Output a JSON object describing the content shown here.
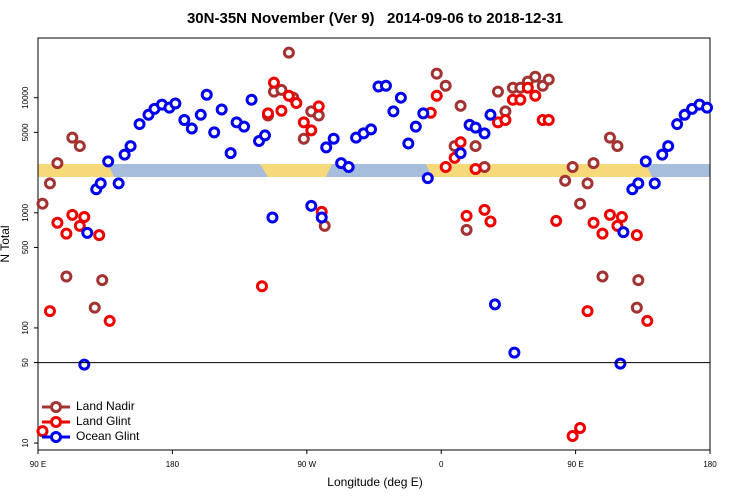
{
  "chart_data": {
    "type": "scatter",
    "title": "30N-35N November (Ver 9)   2014-09-06 to 2018-12-31",
    "x_label": "Longitude (deg E)",
    "y_label": "N Total",
    "xlim": [
      90,
      540
    ],
    "xticks": [
      {
        "value": 90,
        "label": "90 E"
      },
      180,
      {
        "value": 270,
        "label": "90 W"
      },
      {
        "value": 360,
        "label": "0"
      },
      {
        "value": 450,
        "label": "90 E"
      },
      {
        "value": 540,
        "label": "180"
      }
    ],
    "ylim": [
      8.7,
      33000
    ],
    "ylog": true,
    "yticks": [
      10,
      50,
      100,
      500,
      1000,
      5000,
      10000
    ],
    "hline": 50,
    "legend": "lower left",
    "series": [
      {
        "name": "Land Nadir",
        "color": "#a33232",
        "x": [
          93,
          98,
          103,
          109,
          113,
          118,
          128,
          133,
          244,
          248,
          253,
          258,
          261,
          268,
          273,
          278,
          282,
          357,
          363,
          373,
          369,
          377,
          383,
          389,
          398,
          403,
          408,
          413,
          418,
          423,
          428,
          432,
          443,
          448,
          453,
          458,
          462,
          468,
          473,
          478,
          491,
          492
        ],
        "values": [
          1200,
          1800,
          2700,
          280,
          4500,
          3800,
          150,
          260,
          7000,
          11300,
          11700,
          24600,
          10000,
          4400,
          7600,
          7000,
          770,
          16200,
          12700,
          8500,
          3800,
          710,
          3800,
          2500,
          11300,
          7600,
          12200,
          12200,
          13800,
          15200,
          12700,
          14400,
          1900,
          2500,
          1200,
          1800,
          2700,
          280,
          4500,
          3800,
          150,
          260
        ]
      },
      {
        "name": "Land Glint",
        "color": "#ee0000",
        "x": [
          93,
          98,
          103,
          109,
          113,
          118,
          121,
          131,
          138,
          240,
          244,
          248,
          253,
          258,
          263,
          268,
          273,
          278,
          280,
          353,
          357,
          363,
          369,
          373,
          377,
          383,
          389,
          393,
          398,
          403,
          408,
          413,
          418,
          423,
          428,
          432,
          437,
          448,
          453,
          458,
          462,
          468,
          473,
          478,
          481,
          491,
          498
        ],
        "values": [
          12.7,
          140,
          820,
          660,
          960,
          770,
          920,
          640,
          115,
          230,
          7300,
          13500,
          7700,
          10400,
          9000,
          6100,
          5200,
          8400,
          1020,
          7400,
          10400,
          2500,
          3000,
          4100,
          940,
          2400,
          1060,
          840,
          6100,
          6400,
          9600,
          9600,
          12200,
          10400,
          6400,
          6400,
          850,
          11.5,
          13.5,
          140,
          820,
          660,
          960,
          770,
          920,
          640,
          115
        ]
      },
      {
        "name": "Ocean Glint",
        "color": "#0000ee",
        "x": [
          121,
          123,
          129,
          132,
          137,
          144,
          148,
          152,
          158,
          164,
          168,
          173,
          178,
          182,
          188,
          193,
          199,
          203,
          208,
          213,
          219,
          223,
          228,
          233,
          238,
          242,
          247,
          273,
          280,
          283,
          288,
          293,
          298,
          303,
          308,
          313,
          318,
          323,
          328,
          333,
          338,
          343,
          348,
          351,
          373,
          379,
          383,
          389,
          393,
          396,
          409,
          480,
          482,
          488,
          492,
          497,
          503,
          508,
          512,
          518,
          523,
          528,
          533,
          538
        ],
        "values": [
          48,
          670,
          1600,
          1800,
          2800,
          1800,
          3200,
          3800,
          5900,
          7100,
          8000,
          8700,
          8200,
          8900,
          6400,
          5400,
          7100,
          10600,
          5000,
          7900,
          3300,
          6100,
          5600,
          9600,
          4200,
          4700,
          910,
          1150,
          910,
          3700,
          4400,
          2700,
          2500,
          4500,
          4900,
          5300,
          12500,
          12700,
          7600,
          10000,
          4000,
          5600,
          7300,
          2000,
          3300,
          5800,
          5500,
          4900,
          7100,
          160,
          61,
          49,
          680,
          1600,
          1800,
          2800,
          1800,
          3200,
          3800,
          5900,
          7100,
          8000,
          8700,
          8200
        ]
      }
    ]
  }
}
